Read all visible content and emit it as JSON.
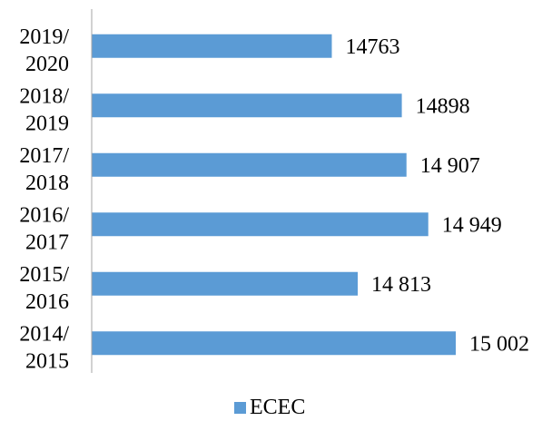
{
  "chart_data": {
    "type": "bar",
    "orientation": "horizontal",
    "categories": [
      [
        "2019/",
        "2020"
      ],
      [
        "2018/",
        "2019"
      ],
      [
        "2017/",
        "2018"
      ],
      [
        "2016/",
        "2017"
      ],
      [
        "2015/",
        "2016"
      ],
      [
        "2014/",
        "2015"
      ]
    ],
    "series": [
      {
        "name": "ECEC",
        "values": [
          14763,
          14898,
          14907,
          14949,
          14813,
          15002
        ],
        "data_labels": [
          "14763",
          "14898",
          "14 907",
          "14 949",
          "14 813",
          "15 002"
        ],
        "color": "#5b9bd5"
      }
    ],
    "xlim": [
      14300,
      15002
    ],
    "grid": false,
    "legend_position": "bottom"
  }
}
